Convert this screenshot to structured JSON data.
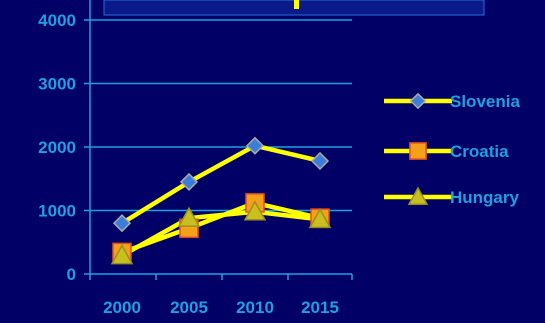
{
  "chart_data": {
    "type": "line",
    "x": [
      2000,
      2005,
      2010,
      2015
    ],
    "ylim": [
      0,
      4000
    ],
    "y_ticks": [
      "0",
      "1000",
      "2000",
      "3000",
      "4000"
    ],
    "x_ticks": [
      "2000",
      "2005",
      "2010",
      "2015"
    ],
    "grid": "horizontal",
    "legend_placement": "right",
    "line_color": "#ffff00",
    "axis_color": "#1fa0e0",
    "background": "#000066",
    "series": [
      {
        "name": "Slovenia",
        "marker": "diamond",
        "marker_color": "#3b7dd8",
        "values": [
          800,
          1450,
          2020,
          1780
        ]
      },
      {
        "name": "Croatia",
        "marker": "square",
        "marker_color": "#f5a01a",
        "values": [
          340,
          720,
          1120,
          880
        ]
      },
      {
        "name": "Hungary",
        "marker": "triangle",
        "marker_color": "#c9c020",
        "values": [
          290,
          880,
          980,
          860
        ]
      }
    ]
  }
}
